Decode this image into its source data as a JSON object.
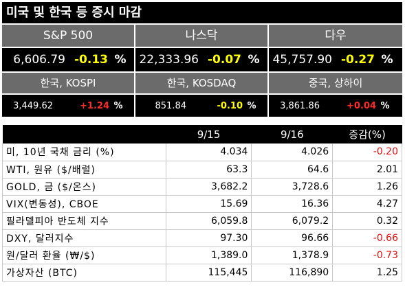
{
  "title": "미국 및 한국 등 증시 마감",
  "us_markets": [
    {
      "name": "S&P 500",
      "value": "6,606.79",
      "change": "-0.13",
      "unit": "%"
    },
    {
      "name": "나스닥",
      "value": "22,333.96",
      "change": "-0.07",
      "unit": "%"
    },
    {
      "name": "다우",
      "value": "45,757.90",
      "change": "-0.27",
      "unit": "%"
    }
  ],
  "asia_markets": [
    {
      "name": "한국, KOSPI",
      "value": "3,449.62",
      "change": "+1.24",
      "unit": "%"
    },
    {
      "name": "한국, KOSDAQ",
      "value": "851.84",
      "change": "-0.10",
      "unit": "%"
    },
    {
      "name": "중국, 상하이",
      "value": "3,861.86",
      "change": "+0.04",
      "unit": "%"
    }
  ],
  "table": {
    "headers": [
      "",
      "9/15",
      "9/16",
      "증감(%)"
    ],
    "rows": [
      {
        "label": "미, 10년 국채 금리 (%)",
        "d1": "4.034",
        "d2": "4.026",
        "chg": "-0.20"
      },
      {
        "label": "WTI, 원유 ($/배럴)",
        "d1": "63.3",
        "d2": "64.6",
        "chg": "2.01"
      },
      {
        "label": "GOLD, 금 ($/온스)",
        "d1": "3,682.2",
        "d2": "3,728.6",
        "chg": "1.26"
      },
      {
        "label": "VIX(변동성), CBOE",
        "d1": "15.69",
        "d2": "16.36",
        "chg": "4.27"
      },
      {
        "label": "필라델피아 반도체 지수",
        "d1": "6,059.8",
        "d2": "6,079.2",
        "chg": "0.32"
      },
      {
        "label": "DXY, 달러지수",
        "d1": "97.30",
        "d2": "96.66",
        "chg": "-0.66"
      },
      {
        "label": "원/달러 환율 (₩/$)",
        "d1": "1,389.0",
        "d2": "1,378.9",
        "chg": "-0.73"
      },
      {
        "label": "가상자산 (BTC)",
        "d1": "115,445",
        "d2": "116,890",
        "chg": "1.25"
      }
    ]
  },
  "colors": {
    "up_change": "#ff2a2a",
    "down_change": "#ffff00",
    "neg_table": "#e01010",
    "header_bg": "#6b6b6b"
  }
}
